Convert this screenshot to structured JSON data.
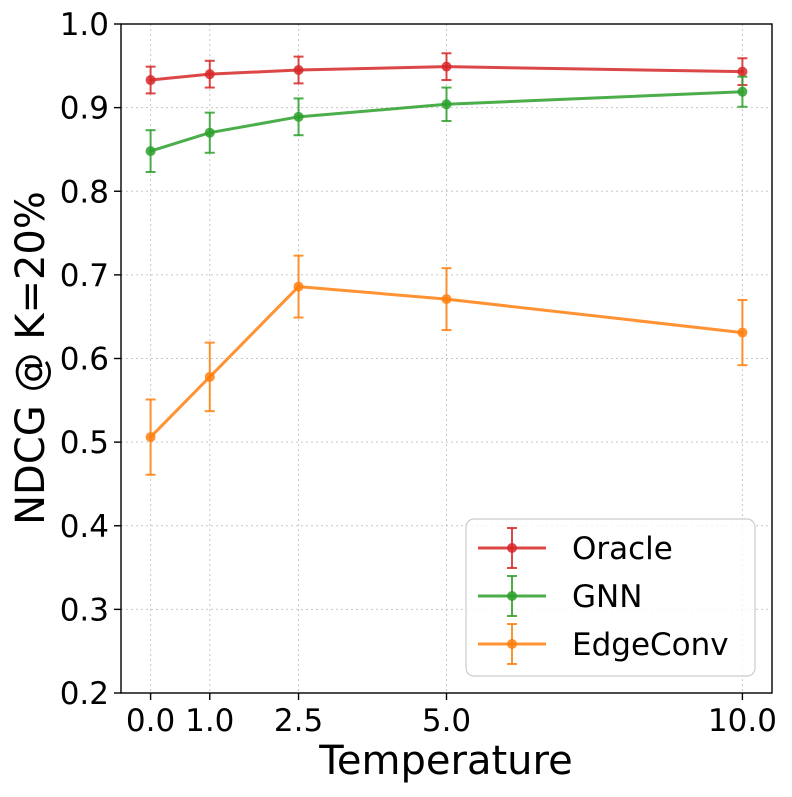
{
  "chart_data": {
    "type": "line",
    "title": "",
    "xlabel": "Temperature",
    "ylabel": "NDCG @ K=20%",
    "x": [
      0.0,
      1.0,
      2.5,
      5.0,
      10.0
    ],
    "x_tick_labels": [
      "0.0",
      "1.0",
      "2.5",
      "5.0",
      "10.0"
    ],
    "xlim": [
      -0.5,
      10.5
    ],
    "ylim": [
      0.2,
      1.0
    ],
    "y_ticks": [
      0.2,
      0.3,
      0.4,
      0.5,
      0.6,
      0.7,
      0.8,
      0.9,
      1.0
    ],
    "y_tick_labels": [
      "0.2",
      "0.3",
      "0.4",
      "0.5",
      "0.6",
      "0.7",
      "0.8",
      "0.9",
      "1.0"
    ],
    "grid": true,
    "legend_position": "lower-right",
    "series": [
      {
        "name": "Oracle",
        "color": "#d62728",
        "values": [
          0.933,
          0.94,
          0.945,
          0.949,
          0.943
        ],
        "errors": [
          0.016,
          0.016,
          0.016,
          0.016,
          0.016
        ]
      },
      {
        "name": "GNN",
        "color": "#2ca02c",
        "values": [
          0.848,
          0.87,
          0.889,
          0.904,
          0.919
        ],
        "errors": [
          0.025,
          0.024,
          0.022,
          0.02,
          0.018
        ]
      },
      {
        "name": "EdgeConv",
        "color": "#ff7f0e",
        "values": [
          0.506,
          0.578,
          0.686,
          0.671,
          0.631
        ],
        "errors": [
          0.045,
          0.041,
          0.037,
          0.037,
          0.039
        ]
      }
    ]
  }
}
